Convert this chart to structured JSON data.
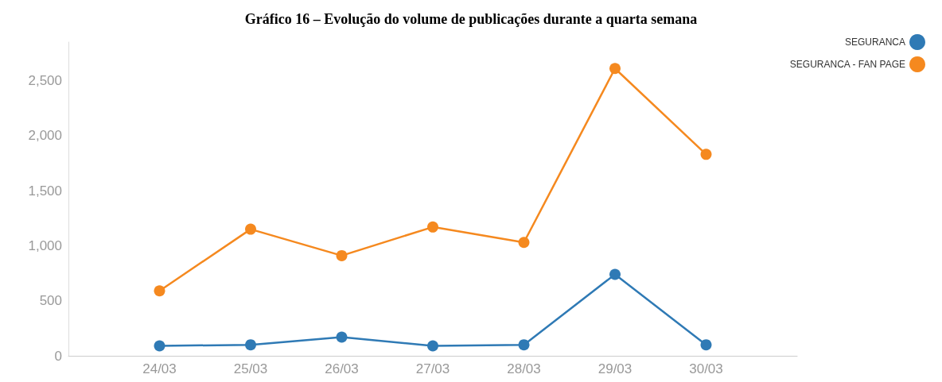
{
  "chart_data": {
    "type": "line",
    "title": "Gráfico 16 – Evolução do volume de publicações durante a quarta semana",
    "categories": [
      null,
      "24/03",
      "25/03",
      "26/03",
      "27/03",
      "28/03",
      "29/03",
      "30/03",
      null
    ],
    "series": [
      {
        "name": "SEGURANCA",
        "color": "#2f7ab5",
        "values": [
          null,
          90,
          100,
          170,
          90,
          100,
          740,
          100,
          null
        ]
      },
      {
        "name": "SEGURANCA - FAN PAGE",
        "color": "#f5891f",
        "values": [
          null,
          590,
          1150,
          910,
          1170,
          1030,
          2610,
          1830,
          null
        ]
      }
    ],
    "ylim": [
      0,
      2850
    ],
    "yticks": [
      0,
      500,
      {
        "value": 1000,
        "label": "1,000"
      },
      {
        "value": 1500,
        "label": "1,500"
      },
      {
        "value": 2000,
        "label": "2,000"
      },
      {
        "value": 2500,
        "label": "2,500"
      }
    ],
    "grid": false,
    "legend": "top right",
    "marker": "circle",
    "line_style": "solid"
  }
}
